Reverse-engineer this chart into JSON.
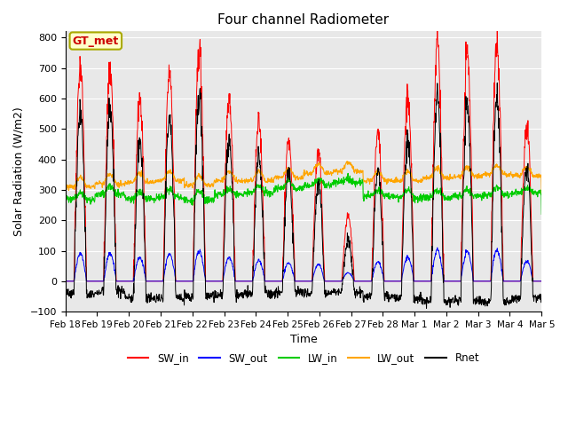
{
  "title": "Four channel Radiometer",
  "xlabel": "Time",
  "ylabel": "Solar Radiation (W/m2)",
  "ylim": [
    -100,
    820
  ],
  "xlim": [
    0,
    16
  ],
  "annotation": "GT_met",
  "background_color": "#ffffff",
  "plot_bg_color": "#e8e8e8",
  "grid_color": "#ffffff",
  "x_tick_labels": [
    "Feb 18",
    "Feb 19",
    "Feb 20",
    "Feb 21",
    "Feb 22",
    "Feb 23",
    "Feb 24",
    "Feb 25",
    "Feb 26",
    "Feb 27",
    "Feb 28",
    "Mar 1",
    "Mar 2",
    "Mar 3",
    "Mar 4",
    "Mar 5"
  ],
  "legend": [
    {
      "label": "SW_in",
      "color": "#ff0000"
    },
    {
      "label": "SW_out",
      "color": "#0000ff"
    },
    {
      "label": "LW_in",
      "color": "#00cc00"
    },
    {
      "label": "LW_out",
      "color": "#ffa500"
    },
    {
      "label": "Rnet",
      "color": "#000000"
    }
  ],
  "yticks": [
    -100,
    0,
    100,
    200,
    300,
    400,
    500,
    600,
    700,
    800
  ],
  "figsize": [
    6.4,
    4.8
  ],
  "dpi": 100
}
